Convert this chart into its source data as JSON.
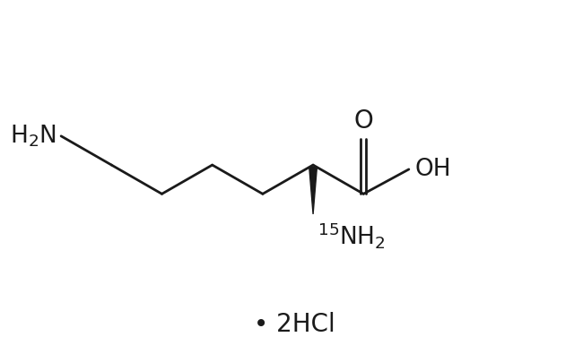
{
  "bg_color": "#ffffff",
  "line_color": "#1a1a1a",
  "line_width": 2.0,
  "font_family": "DejaVu Sans",
  "figsize": [
    6.4,
    4.05
  ],
  "dpi": 100,
  "salt_label": "• 2HCl",
  "salt_fontsize": 20,
  "label_fontsize": 19,
  "o_fontsize": 20,
  "oh_fontsize": 19,
  "h2n_fontsize": 19,
  "n15_fontsize": 19
}
